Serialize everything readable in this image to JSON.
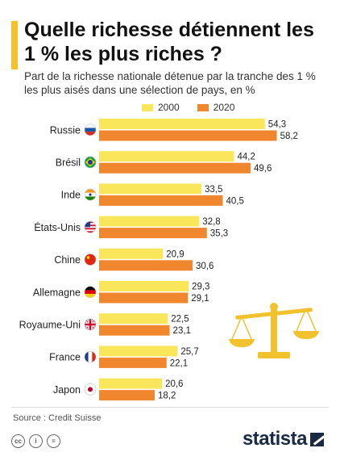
{
  "header": {
    "title": "Quelle richesse détiennent les 1 % les plus riches ?",
    "subtitle": "Part de la richesse nationale détenue par la tranche des 1 % les plus aisés dans une sélection de pays, en %"
  },
  "footer": {
    "source": "Source : Credit Suisse",
    "brand": "statista",
    "license_icons": [
      "cc-icon",
      "by-icon",
      "nd-icon"
    ],
    "license_glyphs": [
      "cc",
      "i",
      "="
    ]
  },
  "colors": {
    "series_2000": "#f9e65b",
    "series_2020": "#f0862e",
    "accent": "#f2c12e",
    "scale_icon": "#f2c12e"
  },
  "chart_data": {
    "type": "bar",
    "orientation": "horizontal",
    "title": "Quelle richesse détiennent les 1 % les plus riches ?",
    "subtitle": "Part de la richesse nationale détenue par la tranche des 1 % les plus aisés dans une sélection de pays, en %",
    "legend_position": "top",
    "grid": false,
    "xlim": [
      0,
      60
    ],
    "categories": [
      "Russie",
      "Brésil",
      "Inde",
      "États-Unis",
      "Chine",
      "Allemagne",
      "Royaume-Uni",
      "France",
      "Japon"
    ],
    "flags": [
      "russia-flag-icon",
      "brazil-flag-icon",
      "india-flag-icon",
      "usa-flag-icon",
      "china-flag-icon",
      "germany-flag-icon",
      "uk-flag-icon",
      "france-flag-icon",
      "japan-flag-icon"
    ],
    "series": [
      {
        "name": "2000",
        "values": [
          54.3,
          44.2,
          33.5,
          32.8,
          20.9,
          29.3,
          22.5,
          25.7,
          20.6
        ],
        "labels": [
          "54,3",
          "44,2",
          "33,5",
          "32,8",
          "20,9",
          "29,3",
          "22,5",
          "25,7",
          "20,6"
        ]
      },
      {
        "name": "2020",
        "values": [
          58.2,
          49.6,
          40.5,
          35.3,
          30.6,
          29.1,
          23.1,
          22.1,
          18.2
        ],
        "labels": [
          "58,2",
          "49,6",
          "40,5",
          "35,3",
          "30,6",
          "29,1",
          "23,1",
          "22,1",
          "18,2"
        ]
      }
    ]
  }
}
